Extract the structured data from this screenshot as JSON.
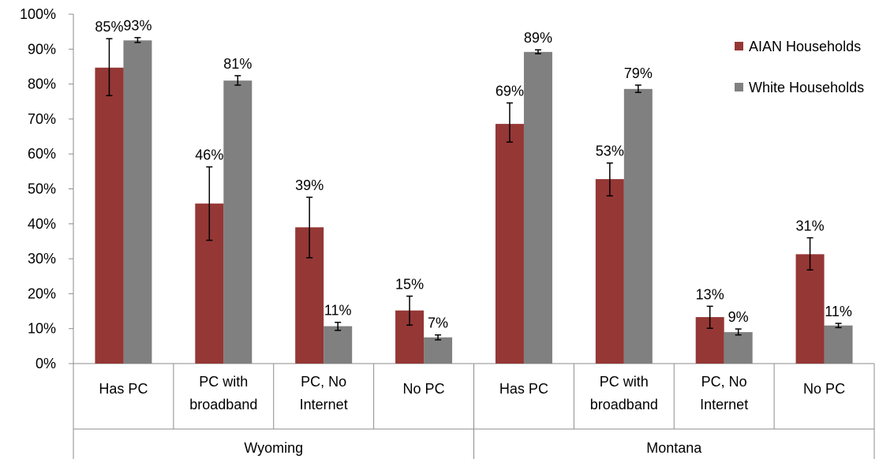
{
  "chart_data": {
    "type": "bar",
    "groups": [
      {
        "name": "Wyoming",
        "categories": [
          "Has PC",
          "PC with broadband",
          "PC, No Internet",
          "No PC"
        ]
      },
      {
        "name": "Montana",
        "categories": [
          "Has PC",
          "PC with broadband",
          "PC, No Internet",
          "No PC"
        ]
      }
    ],
    "category_lines": [
      [
        "Has PC"
      ],
      [
        "PC with",
        "broadband"
      ],
      [
        "PC, No",
        "Internet"
      ],
      [
        "No PC"
      ],
      [
        "Has PC"
      ],
      [
        "PC with",
        "broadband"
      ],
      [
        "PC, No",
        "Internet"
      ],
      [
        "No PC"
      ]
    ],
    "series": [
      {
        "name": "AIAN Households",
        "color": "#953735",
        "values": [
          0.847,
          0.458,
          0.39,
          0.152,
          0.686,
          0.528,
          0.133,
          0.313
        ],
        "labels": [
          "85%",
          "46%",
          "39%",
          "15%",
          "69%",
          "53%",
          "13%",
          "31%"
        ],
        "err_low": [
          0.767,
          0.353,
          0.303,
          0.11,
          0.634,
          0.48,
          0.101,
          0.268
        ],
        "err_high": [
          0.93,
          0.563,
          0.476,
          0.193,
          0.746,
          0.574,
          0.164,
          0.36
        ]
      },
      {
        "name": "White Households",
        "color": "#808080",
        "values": [
          0.925,
          0.81,
          0.107,
          0.075,
          0.892,
          0.786,
          0.09,
          0.109
        ],
        "labels": [
          "93%",
          "81%",
          "11%",
          "7%",
          "89%",
          "79%",
          "9%",
          "11%"
        ],
        "err_low": [
          0.919,
          0.797,
          0.095,
          0.068,
          0.887,
          0.776,
          0.082,
          0.103
        ],
        "err_high": [
          0.933,
          0.824,
          0.118,
          0.082,
          0.898,
          0.797,
          0.099,
          0.115
        ]
      }
    ],
    "y_ticks": [
      "0%",
      "10%",
      "20%",
      "30%",
      "40%",
      "50%",
      "60%",
      "70%",
      "80%",
      "90%",
      "100%"
    ],
    "ylim": [
      0,
      1
    ],
    "grid": false,
    "legend_position": "top-right"
  }
}
